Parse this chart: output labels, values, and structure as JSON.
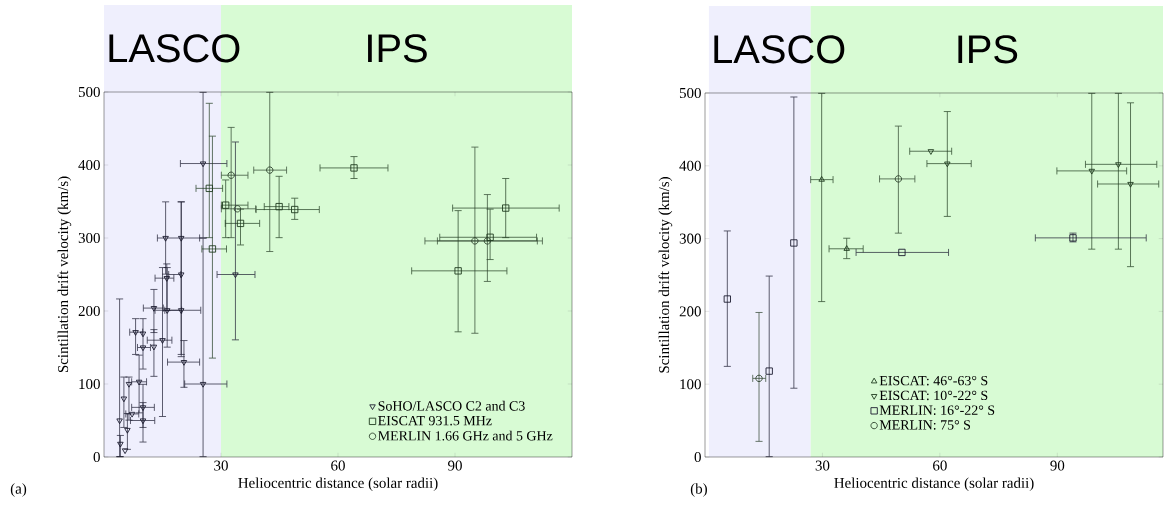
{
  "chart_data": [
    {
      "type": "scatter",
      "xlabel": "Heliocentric distance (solar radii)",
      "ylabel": "Scintillation drift velocity (km/s)",
      "xlim": [
        0,
        120
      ],
      "ylim": [
        0,
        500
      ],
      "xticks": [
        30,
        60,
        90
      ],
      "yticks": [
        0,
        100,
        200,
        300,
        400,
        500
      ],
      "legend": "bottom right",
      "annotations": [
        "(a)"
      ],
      "bands": [
        {
          "axis": "x",
          "from": 0,
          "to": 30,
          "label": "LASCO",
          "color": "#efeffd"
        },
        {
          "axis": "x",
          "from": 30,
          "to": 120,
          "label": "IPS",
          "color": "#d8fbd4"
        }
      ],
      "series": [
        {
          "name": "SoHO/LASCO C2 and C3",
          "color": "#1b1b2f",
          "marker": "triangle-down",
          "x": [
            25.4,
            25.4,
            15.8,
            19.8,
            19.8,
            16.2,
            20.5,
            19.8,
            16.1,
            12.8,
            12.8,
            15.0,
            10,
            10,
            8.1,
            9,
            6.4,
            10,
            10,
            5.1,
            7.2,
            4.0,
            6.0,
            4.2,
            5.4,
            33.7
          ],
          "values": [
            402,
            100,
            300,
            300,
            201,
            201,
            130,
            250,
            245,
            204,
            151,
            160,
            150,
            169,
            171,
            103,
            100,
            68,
            50,
            80,
            59,
            50,
            37,
            18,
            9,
            250
          ],
          "errors": [
            [
              300,
              500
            ],
            [
              0,
              300
            ],
            [
              250,
              350
            ],
            [
              140,
              350
            ],
            [
              137,
              350
            ],
            [
              150,
              260
            ],
            [
              95,
              160
            ],
            null,
            [
              200,
              265
            ],
            [
              170,
              230
            ],
            [
              110,
              175
            ],
            [
              55,
              260
            ],
            [
              120,
              190
            ],
            null,
            [
              140,
              190
            ],
            [
              60,
              140
            ],
            [
              50,
              110
            ],
            [
              40,
              100
            ],
            [
              20,
              75
            ],
            [
              40,
              110
            ],
            null,
            [
              0,
              217
            ],
            [
              10,
              60
            ],
            [
              0,
              30
            ],
            null,
            [
              160,
              432
            ]
          ],
          "xerrors": [
            [
              19.5,
              31.6
            ],
            [
              20.6,
              31.6
            ],
            [
              13.6,
              24.6
            ],
            null,
            [
              15.5,
              24.9
            ],
            [
              13,
              20
            ],
            [
              16.2,
              24.6
            ],
            [
              16.5,
              19.8
            ],
            [
              13,
              18
            ],
            [
              10,
              15.3
            ],
            null,
            [
              11,
              17.5
            ],
            [
              8.5,
              12
            ],
            null,
            [
              6.5,
              10
            ],
            [
              7,
              11
            ],
            null,
            [
              7,
              13
            ],
            [
              6.7,
              13.1
            ],
            null,
            [
              5.5,
              9
            ],
            null,
            null,
            null,
            null,
            [
              28.9,
              38.8
            ]
          ]
        },
        {
          "name": "EISCAT 931.5 MHz",
          "color": "#1f3b1f",
          "marker": "square",
          "x": [
            31.2,
            35,
            27.8,
            27,
            64.1,
            44.9,
            48.9,
            90.8,
            103,
            99
          ],
          "values": [
            345,
            320,
            285,
            368,
            396,
            343,
            339,
            255,
            341,
            301
          ],
          "errors": [
            [
              300,
              380
            ],
            [
              290,
              340
            ],
            [
              135,
              440
            ],
            [
              300,
              485
            ],
            [
              381,
              412
            ],
            [
              300,
              385
            ],
            [
              325,
              355
            ],
            [
              171,
              338
            ],
            [
              300,
              382
            ],
            [
              270,
              340
            ]
          ],
          "xerrors": [
            [
              30,
              37
            ],
            [
              31,
              40
            ],
            [
              25,
              31.5
            ],
            [
              23.5,
              30.5
            ],
            [
              55.3,
              72.9
            ],
            [
              41,
              47.5
            ],
            [
              38.9,
              55.3
            ],
            [
              78.8,
              103.4
            ],
            [
              89.3,
              116.8
            ],
            [
              86,
              111
            ]
          ]
        },
        {
          "name": "MERLIN 1.66 GHz and 5 GHz",
          "color": "#2a402a",
          "marker": "circle",
          "x": [
            32.6,
            42.5,
            34.2,
            95.1,
            98.3
          ],
          "values": [
            386,
            393,
            340,
            296,
            296
          ],
          "errors": [
            [
              300,
              452
            ],
            [
              281,
              500
            ],
            null,
            [
              169,
              425
            ],
            [
              240,
              360
            ]
          ],
          "xerrors": [
            [
              30,
              37
            ],
            [
              38.3,
              46.9
            ],
            [
              30,
              39
            ],
            [
              85.4,
              112.5
            ],
            [
              82.2,
              111.2
            ]
          ]
        }
      ]
    },
    {
      "type": "scatter",
      "xlabel": "Heliocentric distance (solar radii)",
      "ylabel": "Scintillation drift velocity (km/s)",
      "xlim": [
        0,
        117
      ],
      "ylim": [
        0,
        500
      ],
      "xticks": [
        30,
        60,
        90
      ],
      "yticks": [
        0,
        100,
        200,
        300,
        400,
        500
      ],
      "legend": "bottom",
      "annotations": [
        "(b)"
      ],
      "bands": [
        {
          "axis": "x",
          "from": 1,
          "to": 27,
          "label": "LASCO",
          "color": "#efeffd"
        },
        {
          "axis": "x",
          "from": 27,
          "to": 117,
          "label": "IPS",
          "color": "#d8fbd4"
        }
      ],
      "series": [
        {
          "name": "EISCAT: 46°-63° S",
          "color": "#1f3b1f",
          "marker": "triangle",
          "x": [
            29.8,
            36.2
          ],
          "values": [
            381,
            286
          ],
          "errors": [
            [
              213,
              500
            ],
            [
              272,
              301
            ]
          ],
          "xerrors": [
            [
              26.9,
              32.8
            ],
            [
              31.6,
              40.5
            ]
          ]
        },
        {
          "name": "EISCAT: 10°-22° S",
          "color": "#1f3b1f",
          "marker": "triangle-down",
          "x": [
            57.7,
            61.9,
            98.8,
            105.6,
            108.7
          ],
          "values": [
            420,
            403,
            393,
            402,
            375
          ],
          "errors": [
            null,
            [
              330,
              475
            ],
            [
              285,
              500
            ],
            [
              285,
              500
            ],
            [
              261,
              487
            ]
          ],
          "xerrors": [
            [
              52.2,
              63.1
            ],
            [
              56.6,
              68.1
            ],
            [
              89.8,
              107.8
            ],
            [
              97.1,
              115.5
            ],
            [
              100.2,
              116
            ]
          ]
        },
        {
          "name": "MERLIN: 16°-22° S",
          "color": "#1b1b2f",
          "marker": "square",
          "x": [
            5.7,
            16.4,
            22.7,
            50.3,
            94.0
          ],
          "values": [
            217,
            118,
            294,
            281,
            301
          ],
          "errors": [
            [
              124,
              311
            ],
            [
              0,
              249
            ],
            [
              94,
              495
            ],
            null,
            [
              295,
              308
            ]
          ],
          "xerrors": [
            null,
            null,
            null,
            [
              38.5,
              62.3
            ],
            [
              84.3,
              112.8
            ]
          ]
        },
        {
          "name": "MERLIN: 75° S",
          "color": "#2a402a",
          "marker": "circle",
          "x": [
            13.8,
            49.4
          ],
          "values": [
            108,
            382
          ],
          "errors": [
            [
              21,
              199
            ],
            [
              307,
              455
            ]
          ],
          "xerrors": [
            [
              12.1,
              15.6
            ],
            [
              44.5,
              53.7
            ]
          ]
        }
      ]
    }
  ]
}
